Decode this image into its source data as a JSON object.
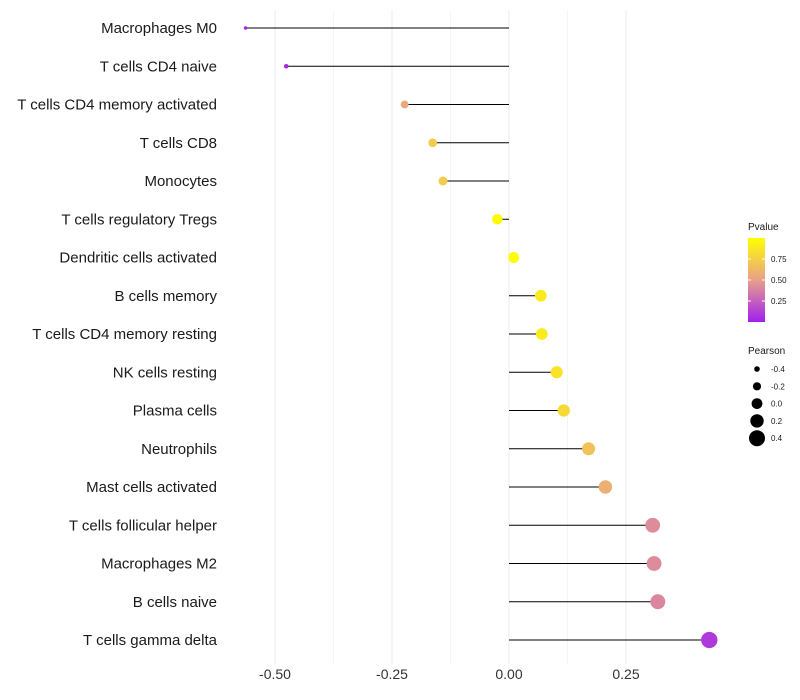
{
  "chart_data": {
    "type": "lollipop",
    "title": "",
    "xlabel": "",
    "ylabel": "",
    "xlim": [
      -0.6,
      0.45
    ],
    "x_ticks": [
      -0.5,
      -0.25,
      0.0,
      0.25
    ],
    "x_tick_labels": [
      "-0.50",
      "-0.25",
      "0.00",
      "0.25"
    ],
    "grid": true,
    "categories": [
      "Macrophages M0",
      "T cells CD4 naive",
      "T cells CD4 memory activated",
      "T cells CD8",
      "Monocytes",
      "T cells regulatory  Tregs ",
      "Dendritic cells activated",
      "B cells memory",
      "T cells CD4 memory resting",
      "NK cells resting",
      "Plasma cells",
      "Neutrophils",
      "Mast cells activated",
      "T cells follicular helper",
      "Macrophages M2",
      "B cells naive",
      "T cells gamma delta"
    ],
    "pearson": [
      -0.563,
      -0.476,
      -0.223,
      -0.163,
      -0.141,
      -0.025,
      0.01,
      0.068,
      0.07,
      0.102,
      0.117,
      0.17,
      0.206,
      0.307,
      0.31,
      0.318,
      0.428
    ],
    "pvalue": [
      0.02,
      0.04,
      0.55,
      0.72,
      0.73,
      0.98,
      0.99,
      0.9,
      0.9,
      0.85,
      0.8,
      0.68,
      0.58,
      0.42,
      0.42,
      0.4,
      0.1
    ],
    "legend": {
      "position": "right",
      "color": {
        "title": "Pvalue",
        "ticks": [
          0.25,
          0.5,
          0.75
        ],
        "tick_labels": [
          "0.25",
          "0.50",
          "0.75"
        ],
        "range": [
          0.0,
          1.0
        ],
        "colors": [
          "#a020f0",
          "#e8a08a",
          "#ffff00"
        ]
      },
      "size": {
        "title": "Pearson",
        "values": [
          -0.4,
          -0.2,
          0.0,
          0.2,
          0.4
        ],
        "labels": [
          "-0.4",
          "-0.2",
          "0.0",
          "0.2",
          "0.4"
        ]
      }
    }
  }
}
